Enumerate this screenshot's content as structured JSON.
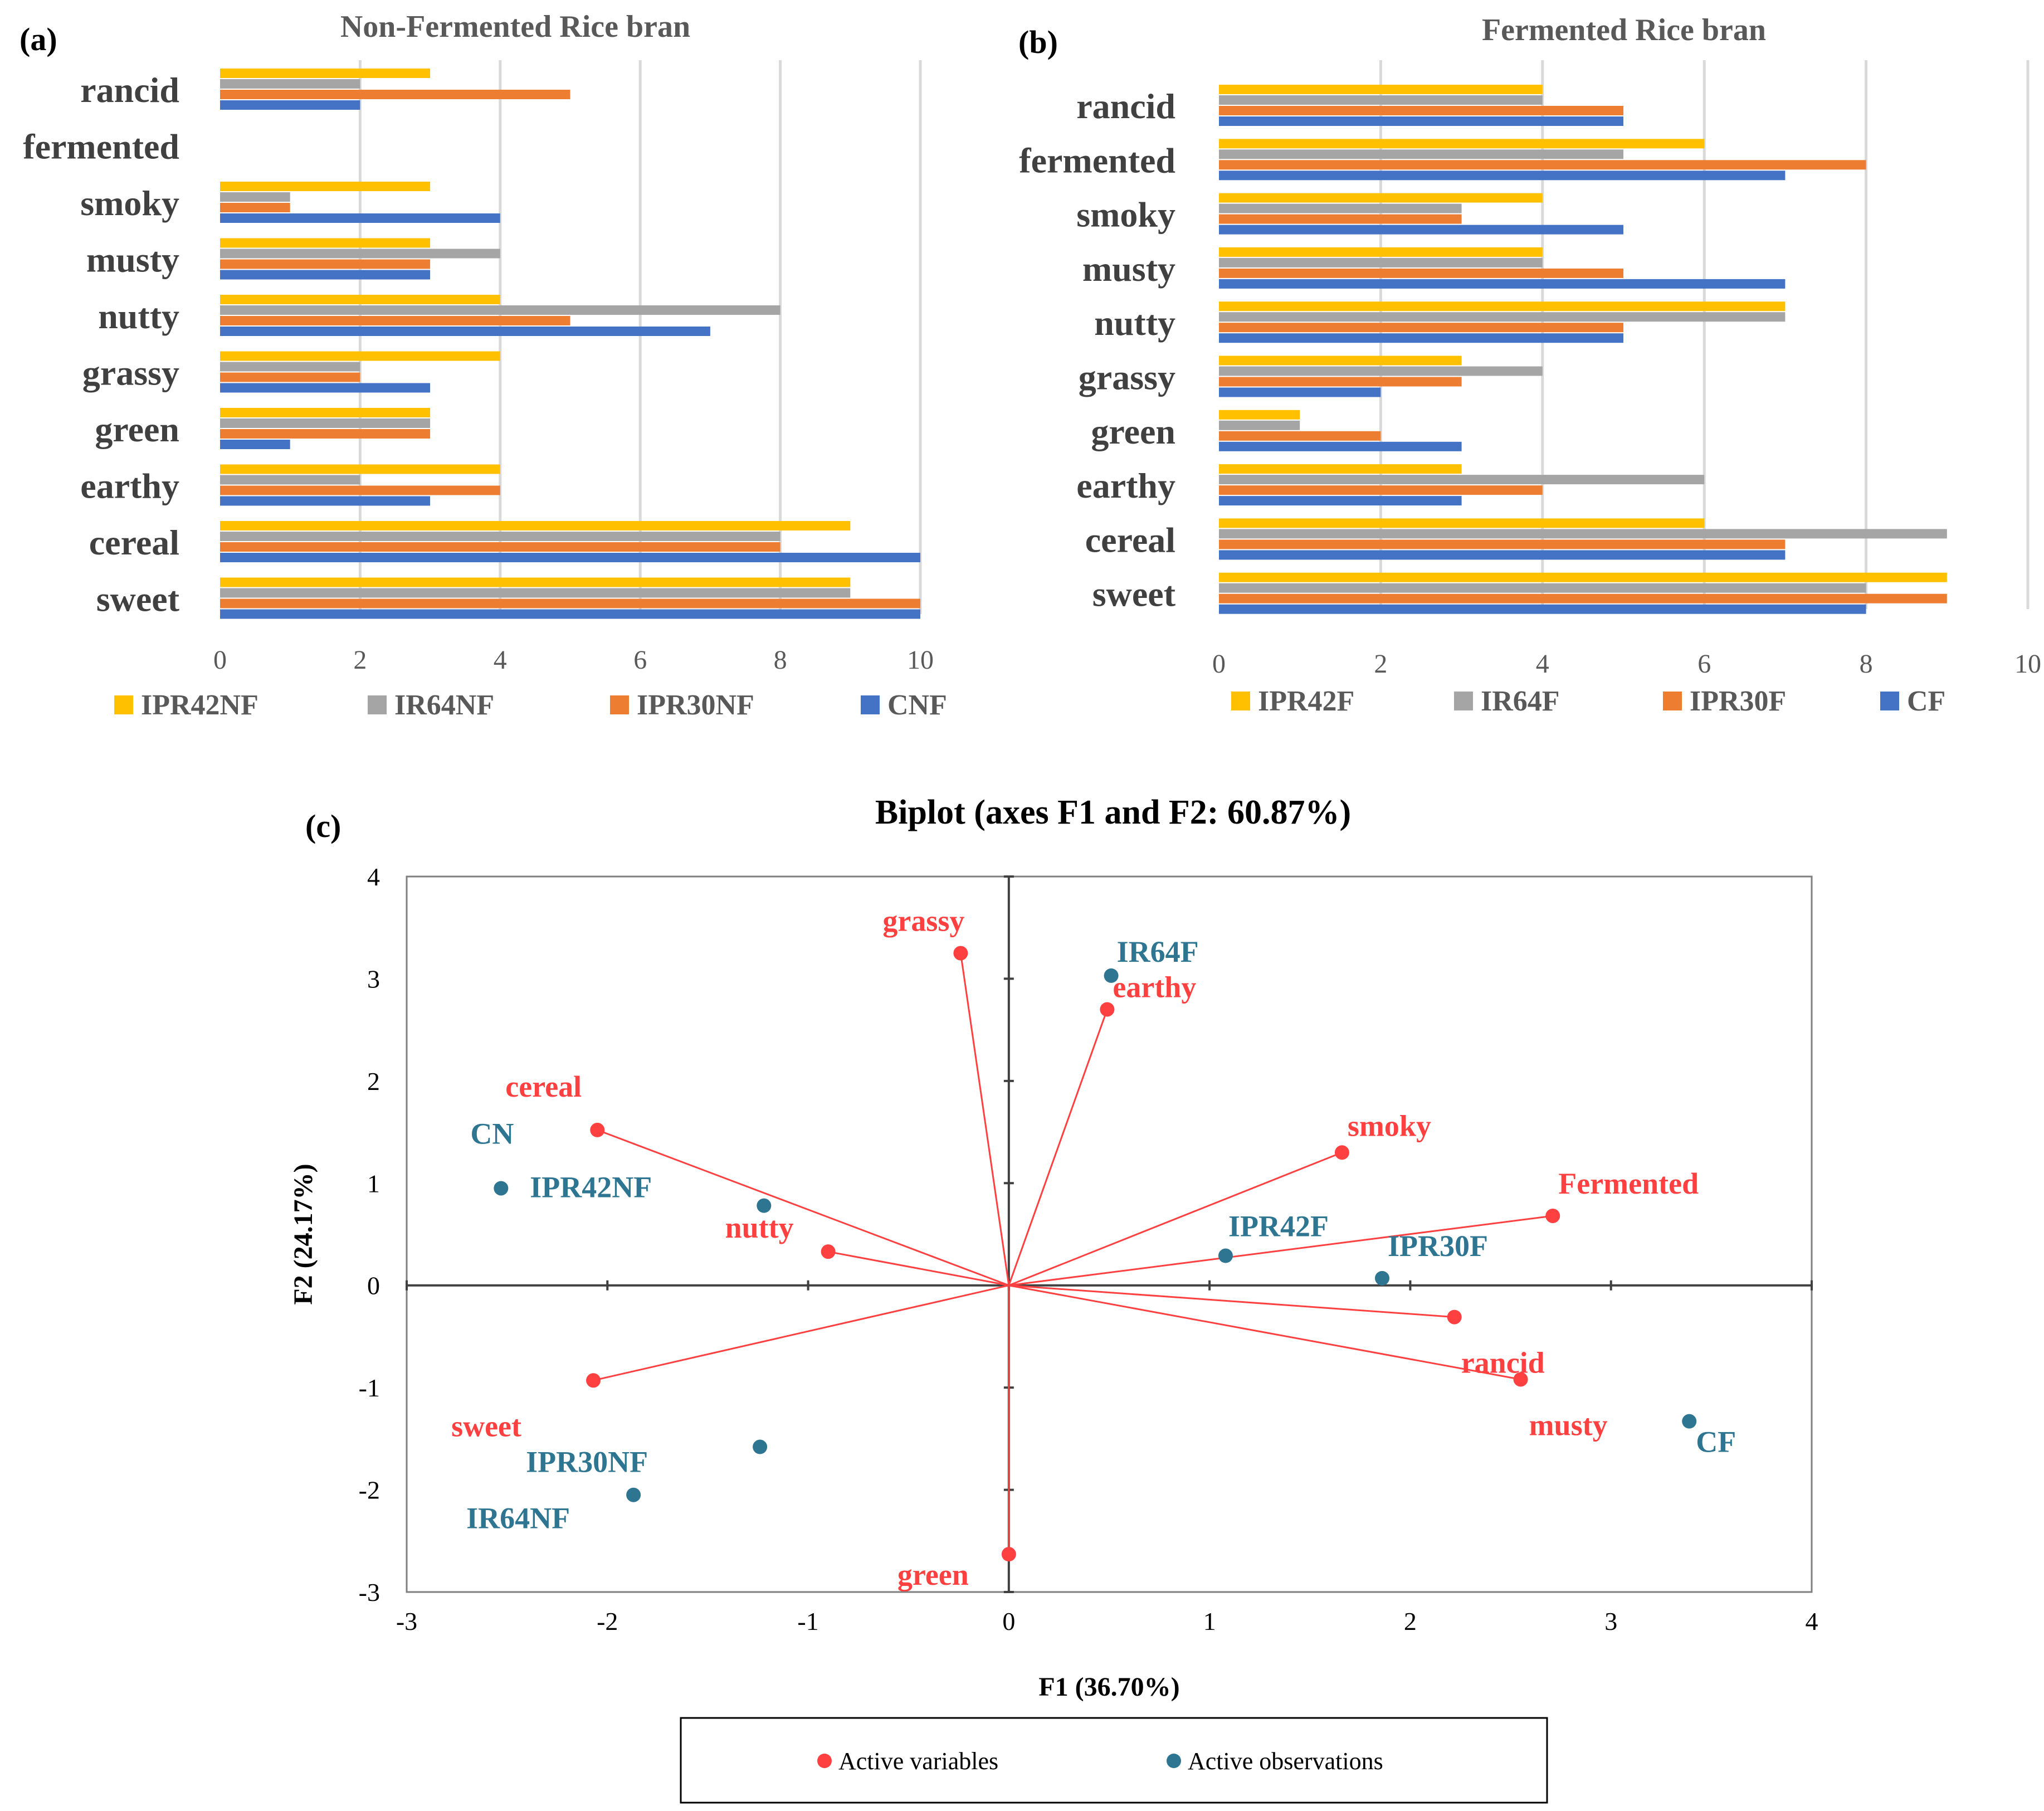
{
  "panels": [
    {
      "label": "(a)",
      "chart_data": {
        "type": "bar",
        "orientation": "horizontal",
        "title": "Non-Fermented Rice bran",
        "categories": [
          "rancid",
          "fermented",
          "smoky",
          "musty",
          "nutty",
          "grassy",
          "green",
          "earthy",
          "cereal",
          "sweet"
        ],
        "series": [
          {
            "name": "IPR42NF",
            "color": "#ffc000",
            "values": [
              3,
              0,
              3,
              3,
              4,
              4,
              3,
              4,
              9,
              9
            ]
          },
          {
            "name": "IR64NF",
            "color": "#a5a5a5",
            "values": [
              2,
              0,
              1,
              4,
              8,
              2,
              3,
              2,
              8,
              9
            ]
          },
          {
            "name": "IPR30NF",
            "color": "#ed7d31",
            "values": [
              5,
              0,
              1,
              3,
              5,
              2,
              3,
              4,
              8,
              10
            ]
          },
          {
            "name": "CNF",
            "color": "#4472c4",
            "values": [
              2,
              0,
              4,
              3,
              7,
              3,
              1,
              3,
              10,
              10
            ]
          }
        ],
        "xlim": [
          0,
          10
        ],
        "xticks": [
          "0",
          "2",
          "4",
          "6",
          "8",
          "10"
        ],
        "grid": true,
        "legend": "bottom"
      }
    },
    {
      "label": "(b)",
      "chart_data": {
        "type": "bar",
        "orientation": "horizontal",
        "title": "Fermented Rice bran",
        "categories": [
          "rancid",
          "fermented",
          "smoky",
          "musty",
          "nutty",
          "grassy",
          "green",
          "earthy",
          "cereal",
          "sweet"
        ],
        "series": [
          {
            "name": "IPR42F",
            "color": "#ffc000",
            "values": [
              4,
              6,
              4,
              4,
              7,
              3,
              1,
              3,
              6,
              9
            ]
          },
          {
            "name": "IR64F",
            "color": "#a5a5a5",
            "values": [
              4,
              5,
              3,
              4,
              7,
              4,
              1,
              6,
              9,
              8
            ]
          },
          {
            "name": "IPR30F",
            "color": "#ed7d31",
            "values": [
              5,
              8,
              3,
              5,
              5,
              3,
              2,
              4,
              7,
              9
            ]
          },
          {
            "name": "CF",
            "color": "#4472c4",
            "values": [
              5,
              7,
              5,
              7,
              5,
              2,
              3,
              3,
              7,
              8
            ]
          }
        ],
        "xlim": [
          0,
          10
        ],
        "xticks": [
          "0",
          "2",
          "4",
          "6",
          "8",
          "10"
        ],
        "grid": true,
        "legend": "bottom"
      }
    },
    {
      "label": "(c)",
      "chart_data": {
        "type": "scatter",
        "title": "Biplot (axes F1 and F2: 60.87%)",
        "xlabel": "F1 (36.70%)",
        "ylabel": "F2 (24.17%)",
        "xlim": [
          -3,
          4
        ],
        "ylim": [
          -3,
          4
        ],
        "xticks": [
          "-3",
          "-2",
          "-1",
          "0",
          "1",
          "2",
          "3",
          "4"
        ],
        "yticks": [
          "-3",
          "-2",
          "-1",
          "0",
          "1",
          "2",
          "3",
          "4"
        ],
        "variables": {
          "name": "Active variables",
          "color": "#ff4040",
          "points": [
            {
              "label": "grassy",
              "x": -0.24,
              "y": 3.25
            },
            {
              "label": "earthy",
              "x": 0.49,
              "y": 2.7
            },
            {
              "label": "cereal",
              "x": -2.05,
              "y": 1.52
            },
            {
              "label": "smoky",
              "x": 1.66,
              "y": 1.3
            },
            {
              "label": "Fermented",
              "x": 2.71,
              "y": 0.68
            },
            {
              "label": "nutty",
              "x": -0.9,
              "y": 0.33
            },
            {
              "label": "rancid",
              "x": 2.22,
              "y": -0.31
            },
            {
              "label": "musty",
              "x": 2.55,
              "y": -0.92
            },
            {
              "label": "sweet",
              "x": -2.07,
              "y": -0.93
            },
            {
              "label": "green",
              "x": 0.0,
              "y": -2.63
            }
          ]
        },
        "observations": {
          "name": "Active observations",
          "color": "#2e7591",
          "points": [
            {
              "label": "IR64F",
              "x": 0.51,
              "y": 3.03
            },
            {
              "label": "CN",
              "x": -2.53,
              "y": 0.95
            },
            {
              "label": "IPR42NF",
              "x": -1.22,
              "y": 0.78
            },
            {
              "label": "IPR42F",
              "x": 1.08,
              "y": 0.29
            },
            {
              "label": "IPR30F",
              "x": 1.86,
              "y": 0.07
            },
            {
              "label": "CF",
              "x": 3.39,
              "y": -1.33
            },
            {
              "label": "IPR30NF",
              "x": -1.24,
              "y": -1.58
            },
            {
              "label": "IR64NF",
              "x": -1.87,
              "y": -2.05
            }
          ]
        },
        "legend": "bottom"
      }
    }
  ]
}
